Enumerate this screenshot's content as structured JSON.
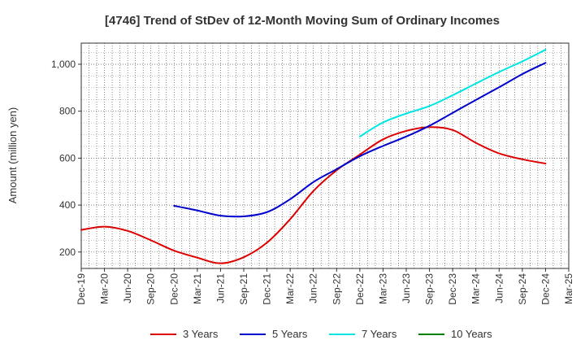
{
  "chart_data": {
    "type": "line",
    "title": "[4746]  Trend of StDev of 12-Month Moving Sum of Ordinary Incomes",
    "xlabel": "",
    "ylabel": "Amount (million yen)",
    "ylim": [
      130,
      1090
    ],
    "yticks": [
      200,
      400,
      600,
      800,
      1000
    ],
    "ytick_labels": [
      "200",
      "400",
      "600",
      "800",
      "1,000"
    ],
    "grid": true,
    "legend_position": "bottom",
    "categories": [
      "Dec-19",
      "Mar-20",
      "Jun-20",
      "Sep-20",
      "Dec-20",
      "Mar-21",
      "Jun-21",
      "Sep-21",
      "Dec-21",
      "Mar-22",
      "Jun-22",
      "Sep-22",
      "Dec-22",
      "Mar-23",
      "Jun-23",
      "Sep-23",
      "Dec-23",
      "Mar-24",
      "Jun-24",
      "Sep-24",
      "Dec-24",
      "Mar-25"
    ],
    "series": [
      {
        "name": "3 Years",
        "color": "#dd0000",
        "values": [
          294,
          308,
          290,
          250,
          206,
          176,
          152,
          178,
          240,
          340,
          460,
          548,
          615,
          680,
          716,
          732,
          720,
          665,
          620,
          595,
          577,
          null
        ]
      },
      {
        "name": "5 Years",
        "color": "#0000cc",
        "values": [
          null,
          null,
          null,
          null,
          397,
          377,
          355,
          352,
          370,
          425,
          498,
          553,
          608,
          652,
          692,
          738,
          793,
          848,
          902,
          958,
          1006,
          null
        ]
      },
      {
        "name": "7 Years",
        "color": "#00e5e5",
        "values": [
          null,
          null,
          null,
          null,
          null,
          null,
          null,
          null,
          null,
          null,
          null,
          null,
          692,
          752,
          790,
          822,
          868,
          918,
          967,
          1012,
          1062,
          null
        ]
      },
      {
        "name": "10 Years",
        "color": "#008000",
        "values": [
          null,
          null,
          null,
          null,
          null,
          null,
          null,
          null,
          null,
          null,
          null,
          null,
          null,
          null,
          null,
          null,
          null,
          null,
          null,
          null,
          null,
          null
        ]
      }
    ]
  }
}
